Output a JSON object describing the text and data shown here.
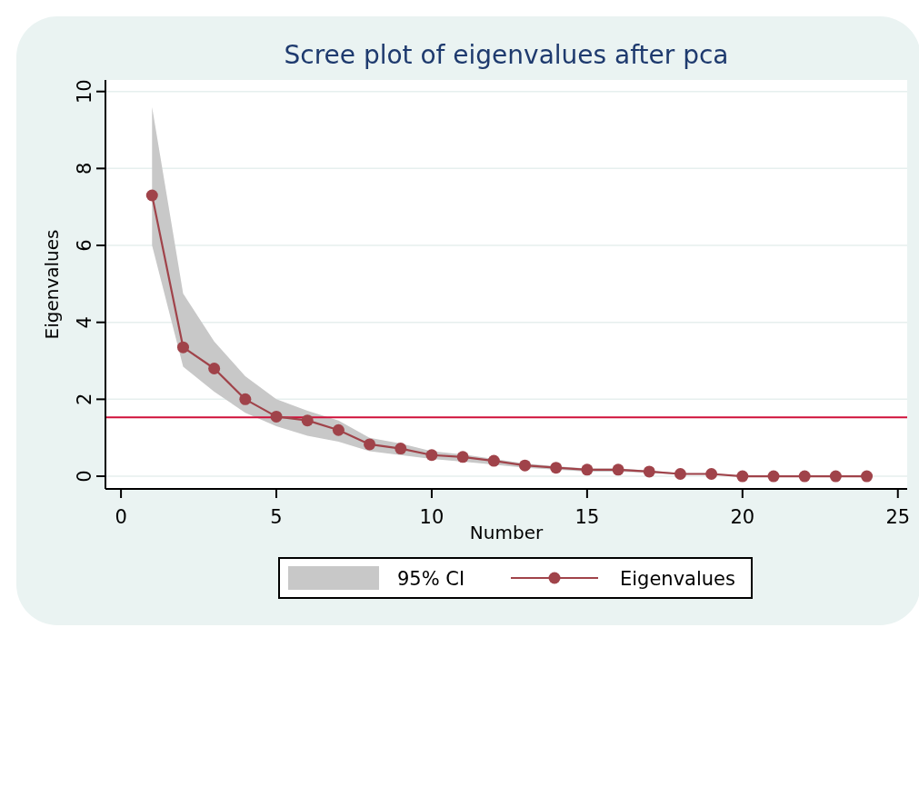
{
  "chart_data": {
    "type": "line",
    "title": "Scree plot of eigenvalues after pca",
    "xlabel": "Number",
    "ylabel": "Eigenvalues",
    "x": [
      1,
      2,
      3,
      4,
      5,
      6,
      7,
      8,
      9,
      10,
      11,
      12,
      13,
      14,
      15,
      16,
      17,
      18,
      19,
      20,
      21,
      22,
      23,
      24
    ],
    "series": [
      {
        "name": "Eigenvalues",
        "color": "#a0434a",
        "values": [
          7.3,
          3.35,
          2.8,
          2.0,
          1.55,
          1.45,
          1.2,
          0.83,
          0.72,
          0.55,
          0.5,
          0.4,
          0.28,
          0.22,
          0.17,
          0.17,
          0.12,
          0.06,
          0.06,
          0,
          0,
          0,
          0,
          0
        ],
        "lower": [
          6.0,
          2.85,
          2.2,
          1.65,
          1.3,
          1.05,
          0.9,
          0.65,
          0.55,
          0.45,
          0.38,
          0.3,
          0.22,
          0.17,
          0.12,
          0.12,
          0.09,
          0.04,
          0.04,
          0,
          0,
          0,
          0,
          0
        ],
        "upper": [
          9.6,
          4.75,
          3.5,
          2.6,
          2.0,
          1.7,
          1.45,
          1.0,
          0.85,
          0.65,
          0.57,
          0.45,
          0.33,
          0.26,
          0.2,
          0.2,
          0.15,
          0.08,
          0.08,
          0.01,
          0.01,
          0.01,
          0.01,
          0.01
        ]
      }
    ],
    "annotations": [
      "95% CI"
    ],
    "xlim": [
      -0.5,
      25.3
    ],
    "ylim": [
      -0.33,
      10.3
    ],
    "xticks": [
      0,
      5,
      10,
      15,
      20,
      25
    ],
    "yticks": [
      0,
      2,
      4,
      6,
      8,
      10
    ],
    "ref_lines": [
      {
        "axis": "y",
        "value": 1.53,
        "color": "#d0103a"
      }
    ],
    "grid": "y",
    "legend": "bottom",
    "marker": "circle",
    "line_style": "solid"
  }
}
